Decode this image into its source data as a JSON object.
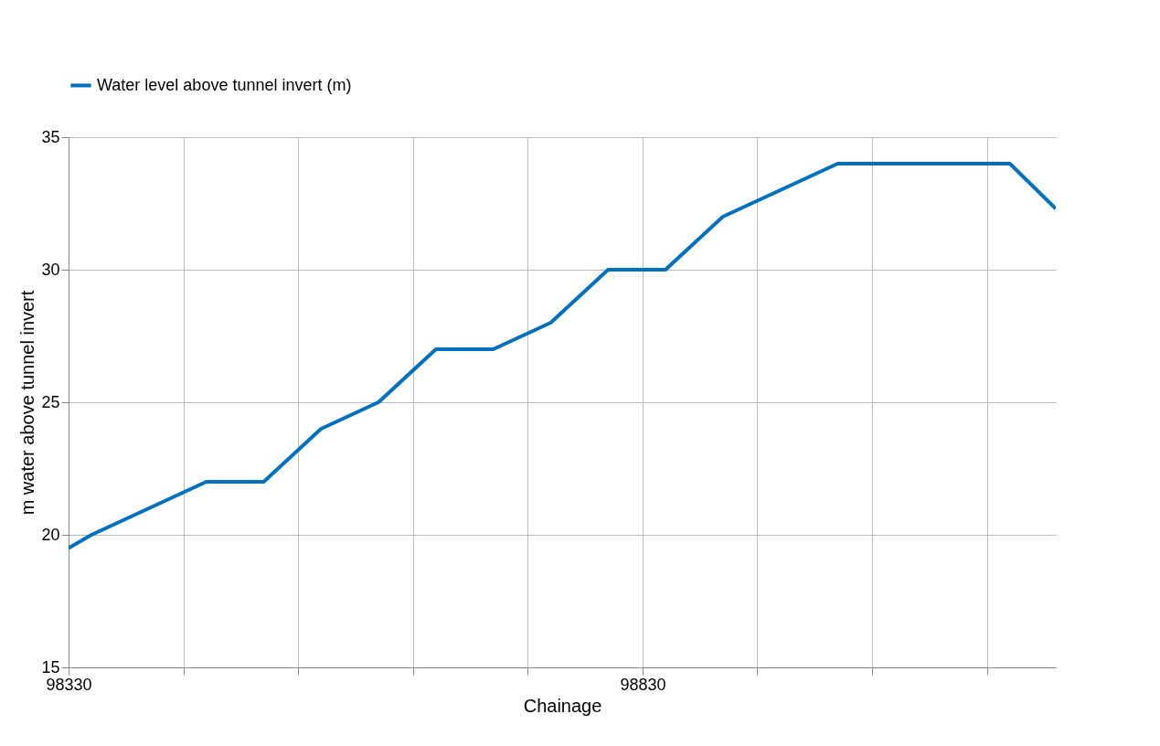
{
  "chart_data": {
    "type": "line",
    "xlabel": "Chainage",
    "ylabel": "m water above tunnel invert",
    "x": [
      98330,
      98350,
      98450,
      98500,
      98550,
      98600,
      98650,
      98700,
      98750,
      98800,
      98850,
      98900,
      99000,
      99150,
      99190
    ],
    "series": [
      {
        "name": "Water level above tunnel invert (m)",
        "color": "#0070c0",
        "values": [
          19.5,
          20,
          22,
          22,
          24,
          25,
          27,
          27,
          28,
          30,
          30,
          32,
          34,
          34,
          32.3
        ]
      }
    ],
    "xlim": [
      98330,
      99190
    ],
    "xticks": [
      98330,
      {
        "value": 98430,
        "label": null
      },
      {
        "value": 98530,
        "label": null
      },
      {
        "value": 98630,
        "label": null
      },
      {
        "value": 98730,
        "label": null
      },
      98830,
      {
        "value": 98930,
        "label": null
      },
      {
        "value": 99030,
        "label": null
      },
      {
        "value": 99130,
        "label": null
      }
    ],
    "ylim": [
      15,
      35
    ],
    "yticks": [
      15,
      20,
      25,
      30,
      35
    ],
    "grid": true,
    "legend": "top left",
    "marker": "none",
    "line_style": "solid"
  }
}
